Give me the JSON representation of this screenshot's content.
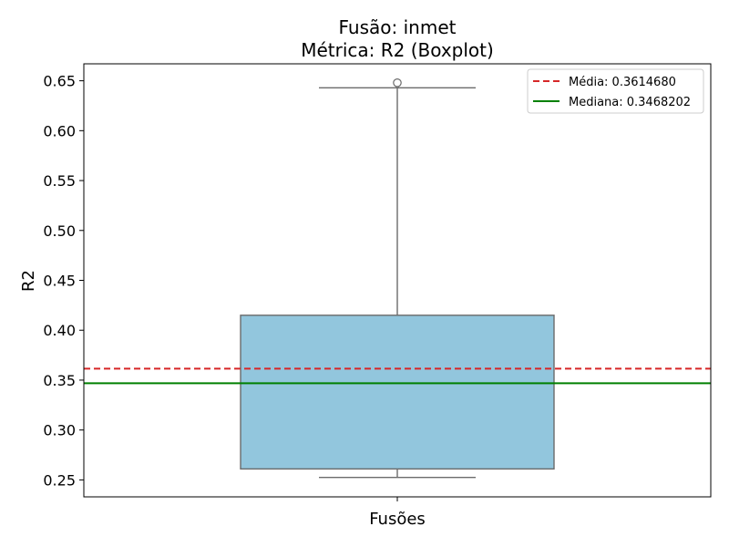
{
  "chart_data": {
    "type": "boxplot",
    "title_line1": "Fusão: inmet",
    "title_line2": "Métrica: R2 (Boxplot)",
    "xlabel": "Fusões",
    "ylabel": "R2",
    "ylim": [
      0.233,
      0.667
    ],
    "yticks": [
      0.25,
      0.3,
      0.35,
      0.4,
      0.45,
      0.5,
      0.55,
      0.6,
      0.65
    ],
    "ytick_labels": [
      "0.25",
      "0.30",
      "0.35",
      "0.40",
      "0.45",
      "0.50",
      "0.55",
      "0.60",
      "0.65"
    ],
    "box": {
      "whisker_low": 0.2525,
      "q1": 0.261,
      "median": 0.3468202,
      "q3": 0.415,
      "whisker_high": 0.643,
      "outliers": [
        0.648
      ]
    },
    "reference_lines": [
      {
        "label": "Média: 0.3614680",
        "value": 0.361468,
        "color": "#d62728",
        "style": "dashed"
      },
      {
        "label": "Mediana: 0.3468202",
        "value": 0.3468202,
        "color": "#008000",
        "style": "solid"
      }
    ],
    "box_color": "#92c6dd",
    "edge_color": "#6b6b6b",
    "legend_position": "top-right",
    "grid": false
  }
}
